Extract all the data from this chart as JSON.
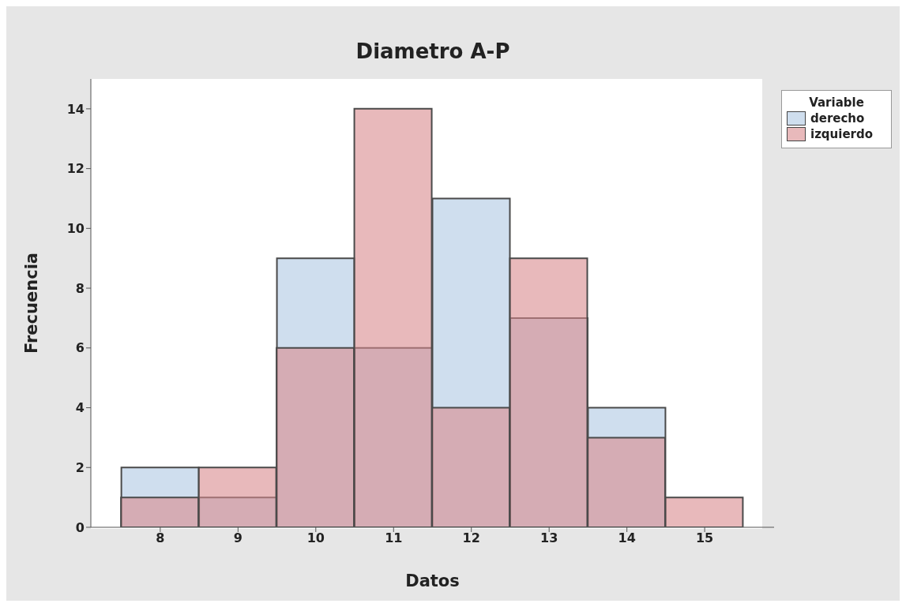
{
  "chart_data": {
    "type": "histogram",
    "title": "Diametro A-P",
    "xlabel": "Datos",
    "ylabel": "Frecuencia",
    "legend_title": "Variable",
    "bins": [
      7.5,
      8.5,
      9.5,
      10.5,
      11.5,
      12.5,
      13.5,
      14.5,
      15.5
    ],
    "series": [
      {
        "name": "derecho",
        "color": "#cfdeee",
        "values": [
          2,
          1,
          9,
          6,
          11,
          7,
          4,
          0
        ]
      },
      {
        "name": "izquierdo",
        "color": "#e8b9bb",
        "values": [
          1,
          2,
          6,
          14,
          4,
          9,
          3,
          1
        ]
      }
    ],
    "xlim": [
      7.1,
      15.9
    ],
    "xticks": [
      8,
      9,
      10,
      11,
      12,
      13,
      14,
      15
    ],
    "ylim": [
      0,
      15
    ],
    "yticks": [
      0,
      2,
      4,
      6,
      8,
      10,
      12,
      14
    ],
    "grid": false,
    "legend": "top right"
  }
}
